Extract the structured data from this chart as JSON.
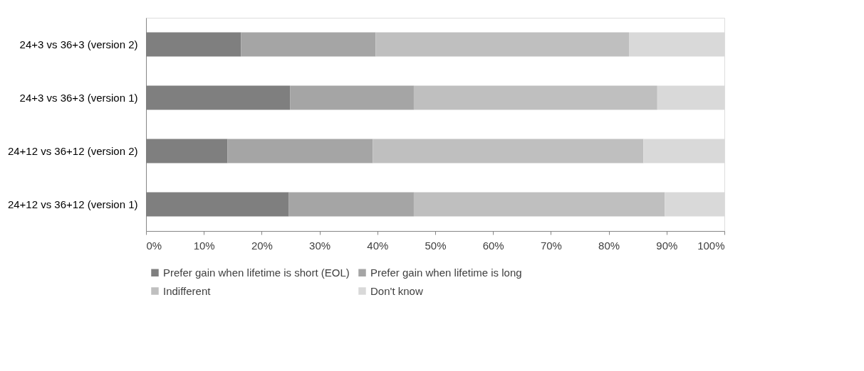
{
  "chart_data": {
    "type": "bar",
    "orientation": "horizontal",
    "stacked": true,
    "categories": [
      "24+3 vs 36+3 (version 2)",
      "24+3 vs 36+3 (version 1)",
      "24+12 vs 36+12 (version 2)",
      "24+12 vs 36+12 (version 1)"
    ],
    "series": [
      {
        "name": "Prefer gain when lifetime is short (EOL)",
        "color": "#7f7f7f",
        "values": [
          16.4,
          24.9,
          14.1,
          24.7
        ]
      },
      {
        "name": "Prefer gain when lifetime is long",
        "color": "#a5a5a5",
        "values": [
          23.3,
          21.4,
          25.1,
          21.6
        ]
      },
      {
        "name": "Indifferent",
        "color": "#bfbfbf",
        "values": [
          43.8,
          42.1,
          46.8,
          43.4
        ]
      },
      {
        "name": "Don't  know",
        "color": "#d9d9d9",
        "values": [
          16.5,
          11.6,
          14.0,
          10.3
        ]
      }
    ],
    "xlim": [
      0,
      100
    ],
    "xticks": [
      {
        "value": 0,
        "label": "0%"
      },
      {
        "value": 10,
        "label": "10%"
      },
      {
        "value": 20,
        "label": "20%"
      },
      {
        "value": 30,
        "label": "30%"
      },
      {
        "value": 40,
        "label": "40%"
      },
      {
        "value": 50,
        "label": "50%"
      },
      {
        "value": 60,
        "label": "60%"
      },
      {
        "value": 70,
        "label": "70%"
      },
      {
        "value": 80,
        "label": "80%"
      },
      {
        "value": 90,
        "label": "90%"
      },
      {
        "value": 100,
        "label": "100%"
      }
    ],
    "grid": false,
    "legend": "bottom"
  }
}
